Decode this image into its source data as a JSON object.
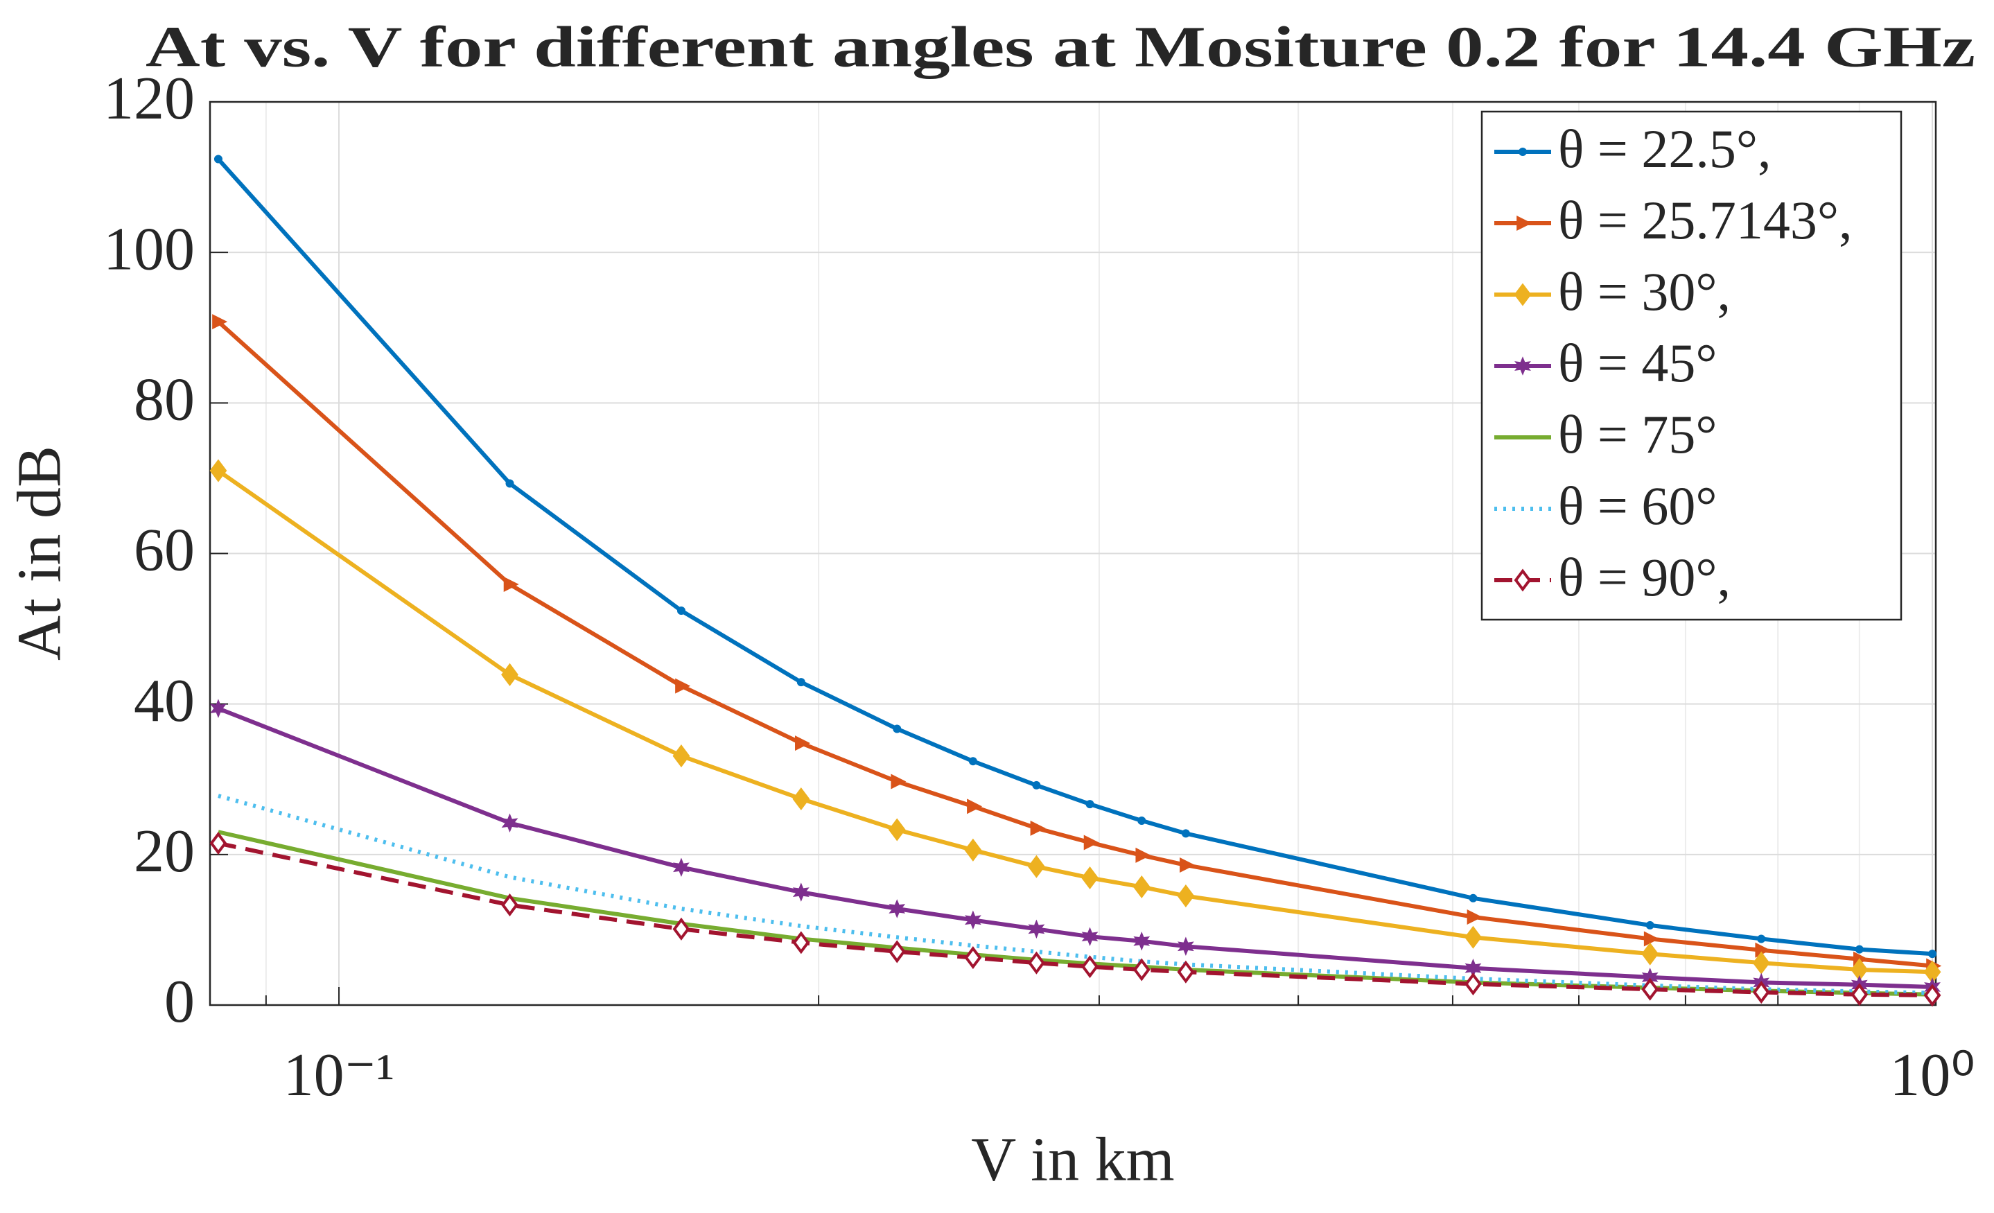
{
  "chart_data": {
    "type": "line",
    "title": "At vs. V for different angles at Mositure 0.2 for 14.4 GHz",
    "xlabel": "V in km",
    "ylabel": "At in dB",
    "xscale": "log",
    "grid": true,
    "legend": "upper right",
    "xlim": [
      0.083,
      1.005
    ],
    "ylim": [
      0,
      120
    ],
    "xticks": [
      {
        "value": 0.1,
        "label": "10⁻¹"
      },
      {
        "value": 1,
        "label": "10⁰"
      }
    ],
    "xminorticks": [
      0.09,
      0.2,
      0.3,
      0.4,
      0.5,
      0.6,
      0.7,
      0.8,
      0.9
    ],
    "yticks": [
      0,
      20,
      40,
      60,
      80,
      100,
      120
    ],
    "x": [
      0.084,
      0.128,
      0.164,
      0.195,
      0.224,
      0.25,
      0.274,
      0.296,
      0.319,
      0.34,
      0.515,
      0.665,
      0.781,
      0.9,
      1.0
    ],
    "series": [
      {
        "name": "θ = 22.5°,",
        "color": "#0072bd",
        "line": "solid",
        "marker": "point",
        "values": [
          112.4,
          69.3,
          52.4,
          42.9,
          36.7,
          32.4,
          29.2,
          26.7,
          24.5,
          22.8,
          14.2,
          10.6,
          8.8,
          7.4,
          6.8
        ]
      },
      {
        "name": "θ = 25.7143°,",
        "color": "#d95319",
        "line": "solid",
        "marker": "triangle-right",
        "values": [
          90.8,
          55.9,
          42.4,
          34.8,
          29.7,
          26.4,
          23.5,
          21.6,
          19.9,
          18.6,
          11.7,
          8.8,
          7.3,
          6.1,
          5.2
        ]
      },
      {
        "name": "θ = 30°,",
        "color": "#edb120",
        "line": "solid",
        "marker": "diamond",
        "values": [
          71,
          43.9,
          33.1,
          27.4,
          23.3,
          20.6,
          18.4,
          16.9,
          15.7,
          14.5,
          9,
          6.8,
          5.6,
          4.7,
          4.4
        ]
      },
      {
        "name": "θ = 45°",
        "color": "#7e2f8e",
        "line": "solid",
        "marker": "hexagram",
        "values": [
          39.4,
          24.2,
          18.3,
          15,
          12.8,
          11.3,
          10.1,
          9.1,
          8.5,
          7.8,
          4.9,
          3.7,
          3,
          2.7,
          2.4
        ]
      },
      {
        "name": "θ = 75°",
        "color": "#77ac30",
        "line": "solid",
        "marker": "none",
        "values": [
          23,
          14.2,
          10.8,
          8.8,
          7.6,
          6.7,
          6,
          5.5,
          5.1,
          4.7,
          3,
          2.3,
          1.9,
          1.6,
          1.4
        ]
      },
      {
        "name": "θ = 60°",
        "color": "#4dbeee",
        "line": "dotted",
        "marker": "none",
        "values": [
          27.8,
          17,
          12.8,
          10.5,
          9,
          7.9,
          7.1,
          6.4,
          5.8,
          5.4,
          3.5,
          2.6,
          2.1,
          1.8,
          1.6
        ]
      },
      {
        "name": "θ = 90°,",
        "color": "#a2142f",
        "line": "dashed",
        "marker": "diamond-open",
        "values": [
          21.5,
          13.3,
          10.1,
          8.3,
          7.1,
          6.3,
          5.6,
          5.1,
          4.7,
          4.4,
          2.8,
          2.1,
          1.7,
          1.4,
          1.3
        ]
      }
    ]
  }
}
